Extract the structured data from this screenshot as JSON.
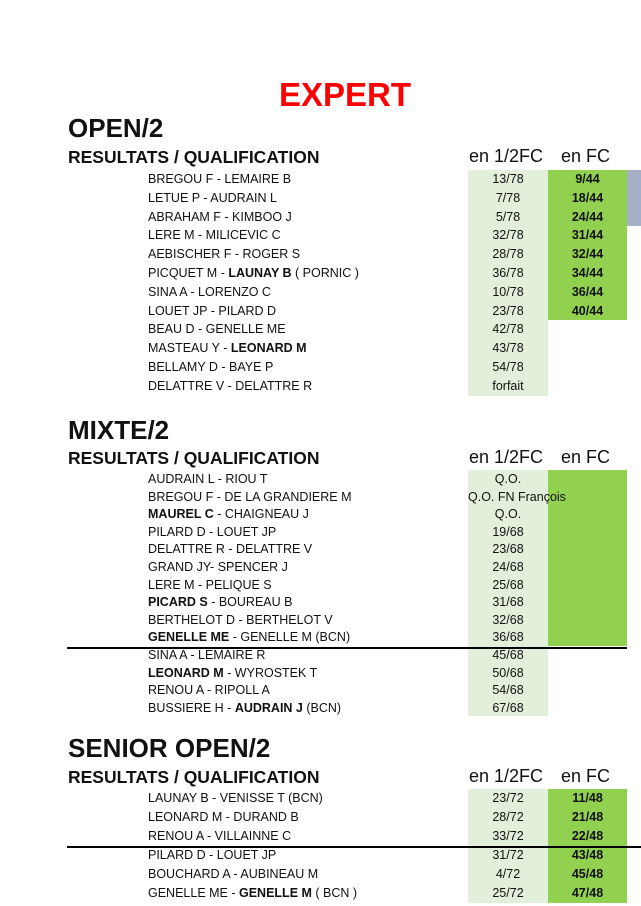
{
  "title": "EXPERT",
  "colors": {
    "title": "#ff0000",
    "half_final_bg": "#e2efda",
    "final_bg": "#92d050",
    "side_block": "#a6b0c4"
  },
  "sections": [
    {
      "title": "OPEN/2",
      "header": "RESULTATS / QUALIFICATION",
      "col1": "en 1/2FC",
      "col2": "en FC",
      "rows": [
        {
          "name": [
            [
              "BREGOU F - LEMAIRE B",
              0
            ]
          ],
          "half": "13/78",
          "final": "9/44"
        },
        {
          "name": [
            [
              "LETUE P - AUDRAIN L",
              0
            ]
          ],
          "half": "7/78",
          "final": "18/44"
        },
        {
          "name": [
            [
              "ABRAHAM F - KIMBOO J",
              0
            ]
          ],
          "half": "5/78",
          "final": "24/44"
        },
        {
          "name": [
            [
              "LERE M - MILICEVIC C",
              0
            ]
          ],
          "half": "32/78",
          "final": "31/44"
        },
        {
          "name": [
            [
              "AEBISCHER F - ROGER S",
              0
            ]
          ],
          "half": "28/78",
          "final": "32/44"
        },
        {
          "name": [
            [
              "PICQUET M - ",
              0
            ],
            [
              "LAUNAY B",
              1
            ],
            [
              " ( PORNIC )",
              0
            ]
          ],
          "half": "36/78",
          "final": "34/44"
        },
        {
          "name": [
            [
              "SINA A - LORENZO C",
              0
            ]
          ],
          "half": "10/78",
          "final": "36/44"
        },
        {
          "name": [
            [
              "LOUET JP - PILARD D",
              0
            ]
          ],
          "half": "23/78",
          "final": "40/44"
        },
        {
          "name": [
            [
              "BEAU D - GENELLE ME",
              0
            ]
          ],
          "half": "42/78",
          "final": ""
        },
        {
          "name": [
            [
              "MASTEAU Y - ",
              0
            ],
            [
              "LEONARD M",
              1
            ]
          ],
          "half": "43/78",
          "final": ""
        },
        {
          "name": [
            [
              "BELLAMY D - BAYE P",
              0
            ]
          ],
          "half": "54/78",
          "final": ""
        },
        {
          "name": [
            [
              "DELATTRE V - DELATTRE R",
              0
            ]
          ],
          "half": "forfait",
          "final": ""
        }
      ]
    },
    {
      "title": "MIXTE/2",
      "header": "RESULTATS / QUALIFICATION",
      "col1": "en 1/2FC",
      "col2": "en FC",
      "rows": [
        {
          "name": [
            [
              "AUDRAIN L - RIOU T",
              0
            ]
          ],
          "half": "Q.O.",
          "final": ""
        },
        {
          "name": [
            [
              "BREGOU F - DE LA GRANDIERE M",
              0
            ]
          ],
          "half": "Q.O. FN  François",
          "final": ""
        },
        {
          "name": [
            [
              "MAUREL C",
              1
            ],
            [
              " - CHAIGNEAU J",
              0
            ]
          ],
          "half": "Q.O.",
          "final": ""
        },
        {
          "name": [
            [
              "PILARD D - LOUET JP",
              0
            ]
          ],
          "half": "19/68",
          "final": ""
        },
        {
          "name": [
            [
              "DELATTRE R - DELATTRE V",
              0
            ]
          ],
          "half": "23/68",
          "final": ""
        },
        {
          "name": [
            [
              "GRAND JY- SPENCER J",
              0
            ]
          ],
          "half": "24/68",
          "final": ""
        },
        {
          "name": [
            [
              "LERE M - PELIQUE S",
              0
            ]
          ],
          "half": "25/68",
          "final": ""
        },
        {
          "name": [
            [
              "PICARD S",
              1
            ],
            [
              " - BOUREAU B",
              0
            ]
          ],
          "half": "31/68",
          "final": ""
        },
        {
          "name": [
            [
              "BERTHELOT D - BERTHELOT V",
              0
            ]
          ],
          "half": "32/68",
          "final": ""
        },
        {
          "name": [
            [
              "GENELLE ME",
              1
            ],
            [
              " - GENELLE M (BCN)",
              0
            ]
          ],
          "half": "36/68",
          "final": ""
        },
        {
          "name": [
            [
              "SINA A - LEMAIRE R",
              0
            ]
          ],
          "half": "45/68",
          "final": ""
        },
        {
          "name": [
            [
              "LEONARD M",
              1
            ],
            [
              " - WYROSTEK T",
              0
            ]
          ],
          "half": "50/68",
          "final": ""
        },
        {
          "name": [
            [
              "RENOU A - RIPOLL A",
              0
            ]
          ],
          "half": "54/68",
          "final": ""
        },
        {
          "name": [
            [
              "BUSSIERE H - ",
              0
            ],
            [
              "AUDRAIN J",
              1
            ],
            [
              " (BCN)",
              0
            ]
          ],
          "half": "67/68",
          "final": ""
        }
      ]
    },
    {
      "title": "SENIOR OPEN/2",
      "header": "RESULTATS / QUALIFICATION",
      "col1": "en 1/2FC",
      "col2": "en FC",
      "rows": [
        {
          "name": [
            [
              "LAUNAY B - VENISSE T (BCN)",
              0
            ]
          ],
          "half": "23/72",
          "final": "11/48"
        },
        {
          "name": [
            [
              "LEONARD M - DURAND B",
              0
            ]
          ],
          "half": "28/72",
          "final": "21/48"
        },
        {
          "name": [
            [
              "RENOU A - VILLAINNE C",
              0
            ]
          ],
          "half": "33/72",
          "final": "22/48"
        },
        {
          "name": [
            [
              "PILARD D - LOUET JP",
              0
            ]
          ],
          "half": "31/72",
          "final": "43/48"
        },
        {
          "name": [
            [
              "BOUCHARD A - AUBINEAU M",
              0
            ]
          ],
          "half": "4/72",
          "final": "45/48"
        },
        {
          "name": [
            [
              "GENELLE ME - ",
              0
            ],
            [
              "GENELLE M",
              1
            ],
            [
              " ( BCN )",
              0
            ]
          ],
          "half": "25/72",
          "final": "47/48"
        }
      ]
    }
  ]
}
